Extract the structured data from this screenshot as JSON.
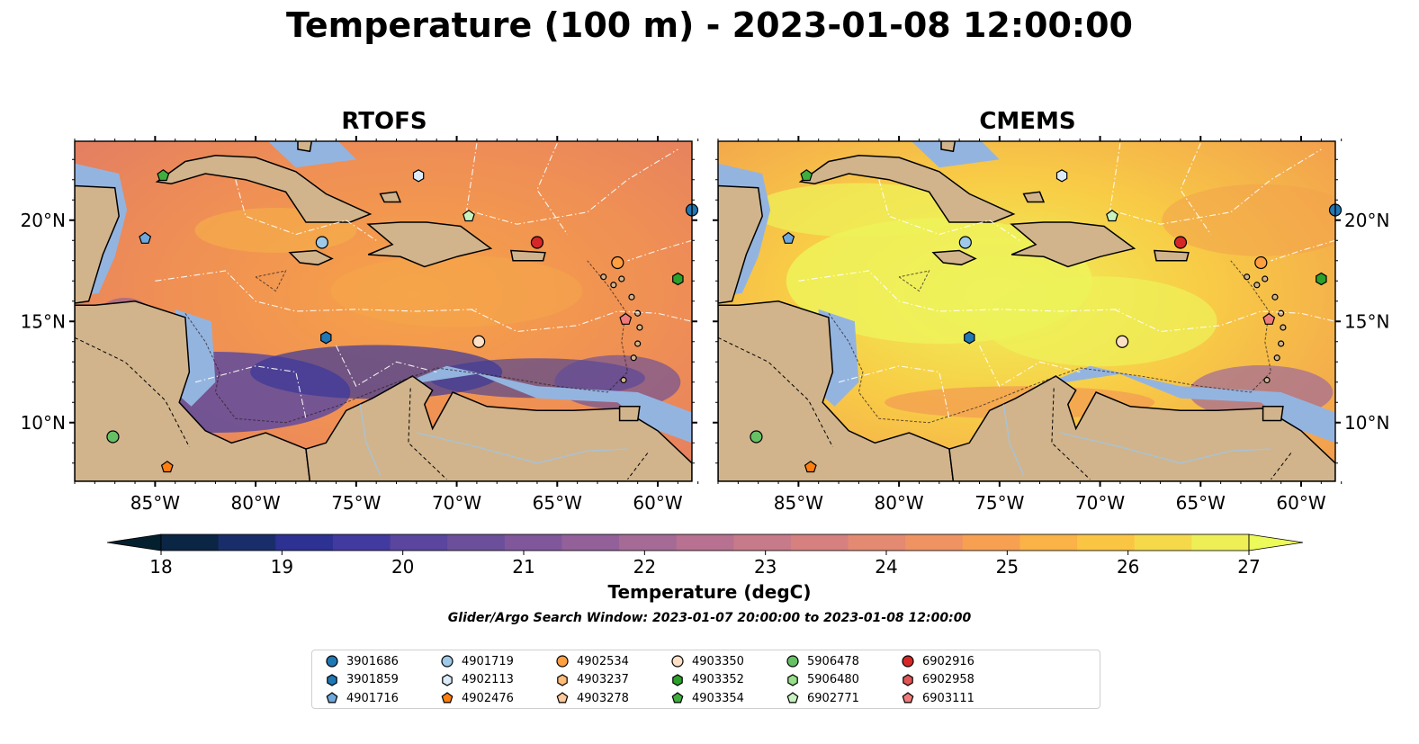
{
  "title": "Temperature (100 m) - 2023-01-08 12:00:00",
  "panels": [
    {
      "title": "RTOFS",
      "theme": "warm"
    },
    {
      "title": "CMEMS",
      "theme": "hot"
    }
  ],
  "axes": {
    "lon_labels": [
      "85°W",
      "80°W",
      "75°W",
      "70°W",
      "65°W",
      "60°W"
    ],
    "lon_values": [
      -85,
      -80,
      -75,
      -70,
      -65,
      -60
    ],
    "lat_labels": [
      "20°N",
      "15°N",
      "10°N"
    ],
    "lat_values": [
      20,
      15,
      10
    ],
    "lon_range": [
      -89,
      -58.3
    ],
    "lat_range": [
      7.1,
      23.9
    ]
  },
  "colorbar": {
    "label": "Temperature (degC)",
    "ticks": [
      "18",
      "19",
      "20",
      "21",
      "22",
      "23",
      "24",
      "25",
      "26",
      "27"
    ],
    "colors": [
      "#0b2545",
      "#1a2d6b",
      "#2c3192",
      "#433aa0",
      "#5a459f",
      "#6c4f9a",
      "#80579a",
      "#93609a",
      "#a66a97",
      "#b87190",
      "#c77a89",
      "#d6817f",
      "#e48a72",
      "#ef9362",
      "#f7a052",
      "#fbb246",
      "#fbc544",
      "#f6d94a",
      "#eeef57"
    ],
    "under_color": "#04202e",
    "over_color": "#ecfa5a",
    "extend": "both"
  },
  "search_window": "Glider/Argo Search Window: 2023-01-07 20:00:00 to 2023-01-08 12:00:00",
  "legend": [
    {
      "id": "3901686",
      "marker": "circle",
      "color": "#1f77b4"
    },
    {
      "id": "3901859",
      "marker": "hexagon",
      "color": "#1f77b4"
    },
    {
      "id": "4901716",
      "marker": "pentagon",
      "color": "#6fa8dc"
    },
    {
      "id": "4901719",
      "marker": "circle",
      "color": "#9ec9e9"
    },
    {
      "id": "4902113",
      "marker": "hexagon",
      "color": "#dcebfa"
    },
    {
      "id": "4902476",
      "marker": "pentagon",
      "color": "#ff7f0e"
    },
    {
      "id": "4902534",
      "marker": "circle",
      "color": "#ff9f40"
    },
    {
      "id": "4903237",
      "marker": "hexagon",
      "color": "#ffbb78"
    },
    {
      "id": "4903278",
      "marker": "pentagon",
      "color": "#ffc89a"
    },
    {
      "id": "4903350",
      "marker": "circle",
      "color": "#fde0c5"
    },
    {
      "id": "4903352",
      "marker": "hexagon",
      "color": "#2ca02c"
    },
    {
      "id": "4903354",
      "marker": "pentagon",
      "color": "#3fae3f"
    },
    {
      "id": "5906478",
      "marker": "circle",
      "color": "#66c166"
    },
    {
      "id": "5906480",
      "marker": "hexagon",
      "color": "#98df8a"
    },
    {
      "id": "6902771",
      "marker": "pentagon",
      "color": "#c7f2c0"
    },
    {
      "id": "6902916",
      "marker": "circle",
      "color": "#d62728"
    },
    {
      "id": "6902958",
      "marker": "hexagon",
      "color": "#e05555"
    },
    {
      "id": "6903111",
      "marker": "pentagon",
      "color": "#f07b7b"
    }
  ],
  "floats": [
    {
      "id": "4903354",
      "lon": -84.6,
      "lat": 22.2
    },
    {
      "id": "4901716",
      "lon": -85.5,
      "lat": 19.1
    },
    {
      "id": "4901719",
      "lon": -76.7,
      "lat": 18.9
    },
    {
      "id": "4902113",
      "lon": -71.9,
      "lat": 22.2
    },
    {
      "id": "6902771",
      "lon": -69.4,
      "lat": 20.2
    },
    {
      "id": "6902916",
      "lon": -66.0,
      "lat": 18.9
    },
    {
      "id": "4902534",
      "lon": -62.0,
      "lat": 17.9
    },
    {
      "id": "4903352",
      "lon": -59.0,
      "lat": 17.1
    },
    {
      "id": "6903111",
      "lon": -61.6,
      "lat": 15.1
    },
    {
      "id": "4903350",
      "lon": -68.9,
      "lat": 14.0
    },
    {
      "id": "3901859",
      "lon": -76.5,
      "lat": 14.2
    },
    {
      "id": "5906478",
      "lon": -87.1,
      "lat": 9.3
    },
    {
      "id": "4902476",
      "lon": -84.4,
      "lat": 7.8
    },
    {
      "id": "3901686",
      "lon": -58.3,
      "lat": 20.5
    }
  ]
}
